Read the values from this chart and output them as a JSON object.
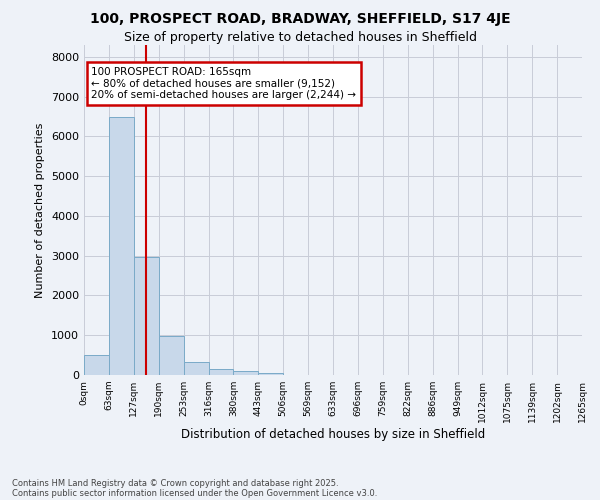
{
  "title1": "100, PROSPECT ROAD, BRADWAY, SHEFFIELD, S17 4JE",
  "title2": "Size of property relative to detached houses in Sheffield",
  "xlabel": "Distribution of detached houses by size in Sheffield",
  "ylabel": "Number of detached properties",
  "footer1": "Contains HM Land Registry data © Crown copyright and database right 2025.",
  "footer2": "Contains public sector information licensed under the Open Government Licence v3.0.",
  "bar_values": [
    500,
    6500,
    2980,
    970,
    330,
    150,
    90,
    50,
    0,
    0,
    0,
    0,
    0,
    0,
    0,
    0,
    0,
    0,
    0,
    0
  ],
  "bar_labels": [
    "0sqm",
    "63sqm",
    "127sqm",
    "190sqm",
    "253sqm",
    "316sqm",
    "380sqm",
    "443sqm",
    "506sqm",
    "569sqm",
    "633sqm",
    "696sqm",
    "759sqm",
    "822sqm",
    "886sqm",
    "949sqm",
    "1012sqm",
    "1075sqm",
    "1139sqm",
    "1202sqm",
    "1265sqm"
  ],
  "bar_color": "#c8d8ea",
  "bar_edge_color": "#7aaac8",
  "grid_color": "#c8ccd8",
  "background_color": "#eef2f8",
  "annotation_text": "100 PROSPECT ROAD: 165sqm\n← 80% of detached houses are smaller (9,152)\n20% of semi-detached houses are larger (2,244) →",
  "annotation_box_color": "#ffffff",
  "annotation_box_edge_color": "#cc0000",
  "vline_color": "#cc0000",
  "vline_x": 2.5,
  "ylim": [
    0,
    8300
  ],
  "yticks": [
    0,
    1000,
    2000,
    3000,
    4000,
    5000,
    6000,
    7000,
    8000
  ]
}
